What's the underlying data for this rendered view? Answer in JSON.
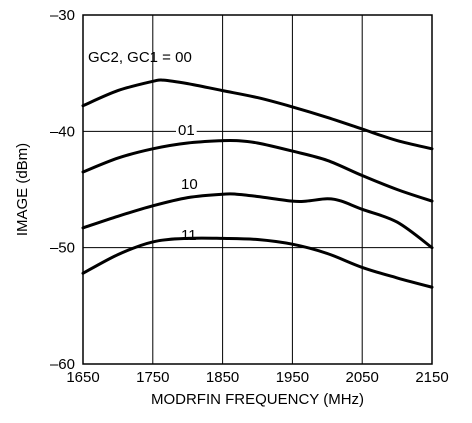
{
  "chart_data": {
    "type": "line",
    "xlabel": "MODRFIN FREQUENCY (MHz)",
    "ylabel": "IMAGE (dBm)",
    "xlim": [
      1650,
      2150
    ],
    "ylim": [
      -60,
      -30
    ],
    "xticks": [
      1650,
      1750,
      1850,
      1950,
      2050,
      2150
    ],
    "yticks": [
      -60,
      -50,
      -40,
      -30
    ],
    "xtick_labels": [
      "1650",
      "1750",
      "1850",
      "1950",
      "2050",
      "2150"
    ],
    "ytick_labels": [
      "–60",
      "–50",
      "–40",
      "–30"
    ],
    "grid": true,
    "series": [
      {
        "name": "GC2, GC1 = 00",
        "x": [
          1650,
          1700,
          1750,
          1765,
          1800,
          1850,
          1900,
          1950,
          2000,
          2050,
          2100,
          2150
        ],
        "y": [
          -37.8,
          -36.5,
          -35.7,
          -35.6,
          -35.9,
          -36.5,
          -37.1,
          -37.9,
          -38.8,
          -39.8,
          -40.8,
          -41.5
        ]
      },
      {
        "name": "01",
        "x": [
          1650,
          1700,
          1750,
          1800,
          1850,
          1870,
          1900,
          1950,
          2000,
          2050,
          2100,
          2150
        ],
        "y": [
          -43.5,
          -42.3,
          -41.5,
          -41.0,
          -40.8,
          -40.8,
          -41.0,
          -41.7,
          -42.5,
          -43.8,
          -45.0,
          -46.0
        ]
      },
      {
        "name": "10",
        "x": [
          1650,
          1700,
          1750,
          1800,
          1850,
          1870,
          1900,
          1950,
          1970,
          2000,
          2020,
          2050,
          2100,
          2150
        ],
        "y": [
          -48.3,
          -47.3,
          -46.4,
          -45.7,
          -45.4,
          -45.4,
          -45.6,
          -46.0,
          -46.0,
          -45.8,
          -46.0,
          -46.7,
          -47.8,
          -50.0
        ]
      },
      {
        "name": "11",
        "x": [
          1650,
          1700,
          1750,
          1800,
          1850,
          1900,
          1950,
          2000,
          2050,
          2100,
          2150
        ],
        "y": [
          -52.2,
          -50.6,
          -49.5,
          -49.2,
          -49.2,
          -49.3,
          -49.7,
          -50.5,
          -51.7,
          -52.6,
          -53.4
        ]
      }
    ]
  }
}
